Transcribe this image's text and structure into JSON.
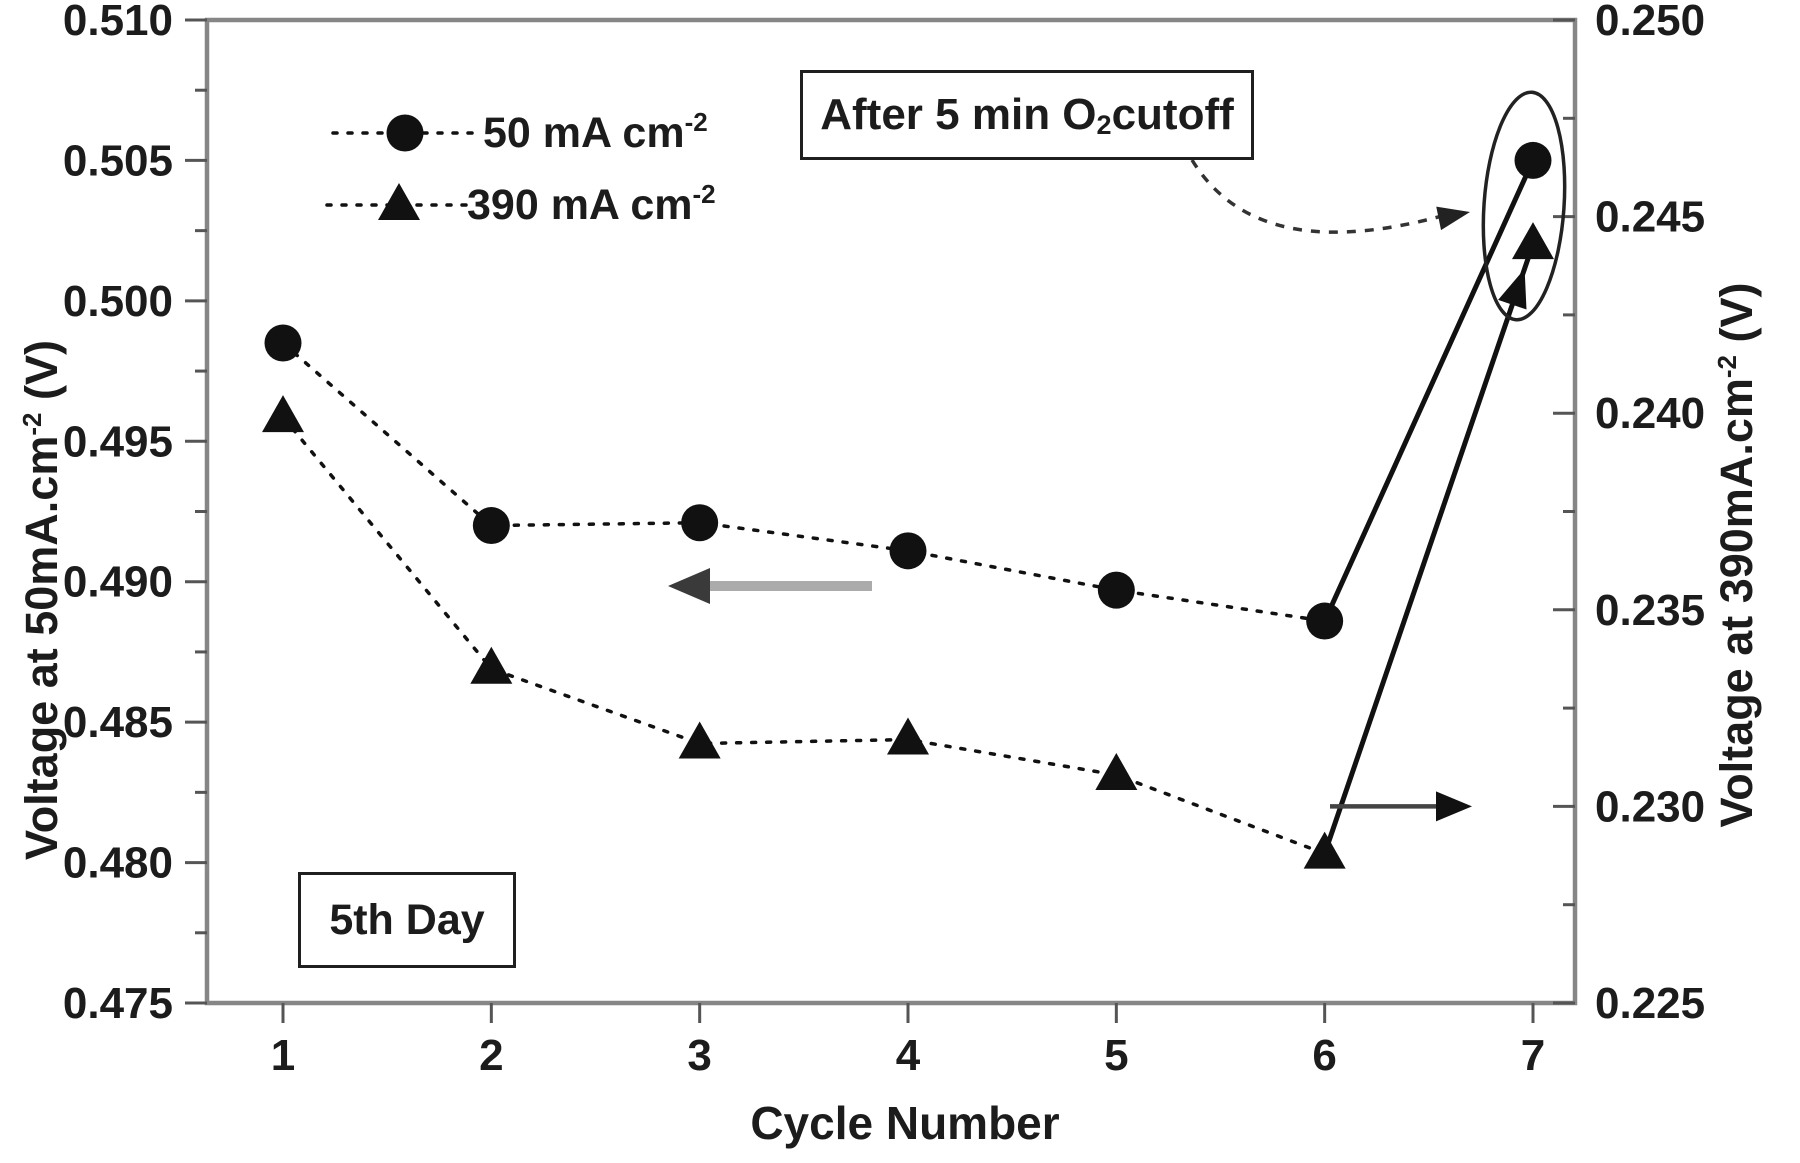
{
  "colors": {
    "background": "#ffffff",
    "frame": "#868686",
    "text": "#1c1c1c",
    "series": "#111111",
    "gray_arrow_shaft": "#ababab",
    "gray_arrow_head": "#3a3a3a",
    "black_arrow": "#222222"
  },
  "legend": {
    "items": [
      {
        "marker": "circle",
        "label_pre": "50 mA cm",
        "label_sup": "-2"
      },
      {
        "marker": "triangle",
        "label_pre": "390 mA cm",
        "label_sup": "-2"
      }
    ]
  },
  "annotations": {
    "cutoff_box": {
      "pre": "After 5 min O",
      "sub": "2",
      "post": " cutoff"
    },
    "day_box": {
      "text": "5th Day"
    }
  },
  "axis_titles": {
    "left": {
      "pre": "Voltage at 50mA.cm",
      "sup": "-2",
      "post": " (V)"
    },
    "right": {
      "pre": "Voltage at 390mA.cm",
      "sup": "-2",
      "post": " (V)"
    },
    "x": {
      "text": "Cycle Number"
    }
  },
  "chart_data": {
    "type": "line",
    "title": "",
    "xlabel": "Cycle Number",
    "x": [
      1,
      2,
      3,
      4,
      5,
      6,
      7
    ],
    "x_ticks": [
      "1",
      "2",
      "3",
      "4",
      "5",
      "6",
      "7"
    ],
    "xlim": [
      0.65,
      7.2
    ],
    "grid": false,
    "legend_position": "upper-left-inside",
    "left_axis": {
      "label": "Voltage at 50mA.cm-2 (V)",
      "min": 0.475,
      "max": 0.51,
      "tick_step": 0.005,
      "minor_step": 0.0025,
      "tick_format_decimals": 3
    },
    "right_axis": {
      "label": "Voltage at 390mA.cm-2 (V)",
      "min": 0.225,
      "max": 0.25,
      "tick_step": 0.005,
      "minor_step": 0.0025,
      "tick_format_decimals": 3
    },
    "series": [
      {
        "name": "50 mA cm-2",
        "axis": "left",
        "marker": "circle",
        "linestyle": "dotted with final segment solid",
        "solid_segment": [
          6,
          7
        ],
        "values": [
          0.4985,
          0.492,
          0.4921,
          0.4911,
          0.4897,
          0.4886,
          0.505
        ]
      },
      {
        "name": "390 mA cm-2",
        "axis": "right",
        "marker": "triangle",
        "linestyle": "dotted with final segment solid",
        "solid_segment": [
          6,
          7
        ],
        "arrow_into_last_point": true,
        "values": [
          0.2399,
          0.2335,
          0.2316,
          0.2317,
          0.2308,
          0.2288,
          0.2443
        ]
      }
    ],
    "annotations": [
      {
        "kind": "boxed-text",
        "text": "After 5 min O2 cutoff",
        "points_to": "cycle 7 points (ellipse)"
      },
      {
        "kind": "boxed-text",
        "text": "5th Day"
      },
      {
        "kind": "ellipse",
        "around": "cycle 7 data points"
      },
      {
        "kind": "arrow",
        "direction": "left",
        "meaning": "circle series reads left axis"
      },
      {
        "kind": "arrow",
        "direction": "right",
        "meaning": "triangle series reads right axis",
        "at_right_axis_value": 0.23
      }
    ]
  }
}
